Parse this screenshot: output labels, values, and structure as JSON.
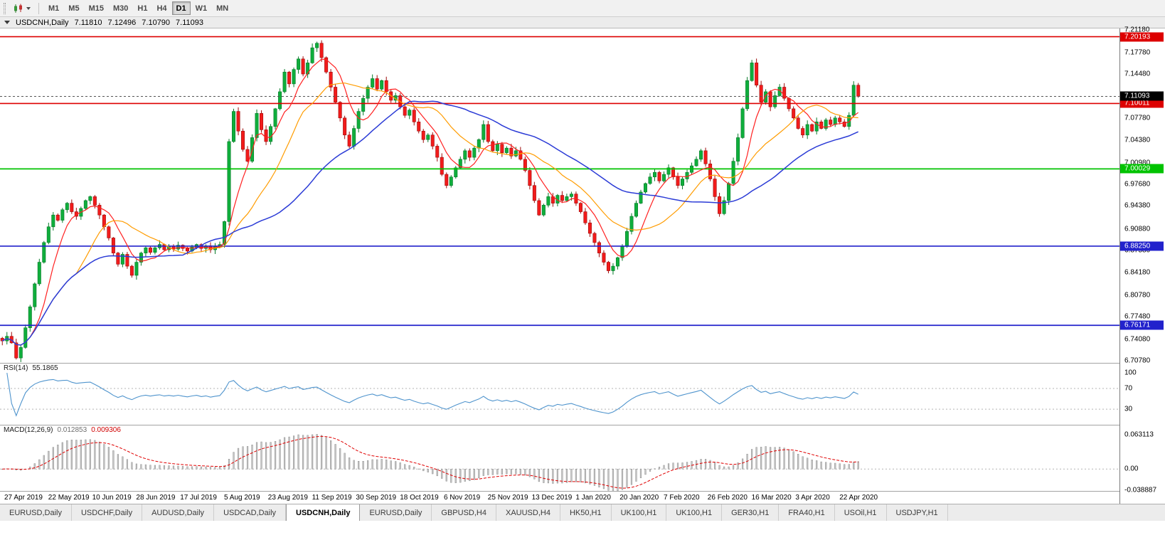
{
  "toolbar": {
    "timeframes": [
      "M1",
      "M5",
      "M15",
      "M30",
      "H1",
      "H4",
      "D1",
      "W1",
      "MN"
    ],
    "active_timeframe": "D1"
  },
  "window": {
    "symbol": "USDCNH,Daily",
    "open": "7.11810",
    "high": "7.12496",
    "low": "7.10790",
    "close": "7.11093"
  },
  "chart_data": {
    "type": "candlestick",
    "symbol": "USDCNH",
    "timeframe": "Daily",
    "grid": false,
    "last_quote": {
      "open": 7.1181,
      "high": 7.12496,
      "low": 7.1079,
      "close": 7.11093
    },
    "x_labels": [
      "27 Apr 2019",
      "22 May 2019",
      "10 Jun 2019",
      "28 Jun 2019",
      "17 Jul 2019",
      "5 Aug 2019",
      "23 Aug 2019",
      "11 Sep 2019",
      "30 Sep 2019",
      "18 Oct 2019",
      "6 Nov 2019",
      "25 Nov 2019",
      "13 Dec 2019",
      "1 Jan 2020",
      "20 Jan 2020",
      "7 Feb 2020",
      "26 Feb 2020",
      "16 Mar 2020",
      "3 Apr 2020",
      "22 Apr 2020"
    ],
    "price_axis": {
      "min": 6.7045,
      "max": 7.2145,
      "labels": [
        "7.21180",
        "7.17780",
        "7.14480",
        "7.07780",
        "7.04380",
        "7.00980",
        "6.97680",
        "6.94380",
        "6.90880",
        "6.87580",
        "6.84180",
        "6.80780",
        "6.77480",
        "6.74080",
        "6.70780"
      ]
    },
    "levels": [
      {
        "label": "7.20193",
        "value": 7.20193,
        "color": "#dd0000"
      },
      {
        "label": "7.10011",
        "value": 7.10011,
        "color": "#dd0000"
      },
      {
        "label": "7.00029",
        "value": 7.00029,
        "color": "#00c300"
      },
      {
        "label": "6.88250",
        "value": 6.8825,
        "color": "#2222cc"
      },
      {
        "label": "6.76171",
        "value": 6.76171,
        "color": "#2222cc"
      }
    ],
    "current_price": {
      "label": "7.11093",
      "value": 7.11093,
      "color": "#000000"
    },
    "colors": {
      "up": "#0fae3c",
      "up_border": "#067a28",
      "down": "#f21b1b",
      "down_border": "#9e0b0b",
      "rsi_line": "#4f94cd",
      "macd_hist_fill": "#c6c6c6",
      "macd_hist_stroke": "#7f7f7f",
      "macd_signal": "#e00000",
      "level_guide": "#b4b4b4"
    },
    "moving_averages": [
      {
        "name": "ma-fast",
        "period": 7,
        "color": "#ff2020"
      },
      {
        "name": "ma-medium",
        "period": 17,
        "color": "#ff9c00"
      },
      {
        "name": "ma-slow",
        "period": 40,
        "color": "#2b3bd6"
      }
    ],
    "closes": [
      6.738,
      6.745,
      6.735,
      6.712,
      6.728,
      6.758,
      6.79,
      6.825,
      6.858,
      6.888,
      6.912,
      6.93,
      6.922,
      6.938,
      6.948,
      6.935,
      6.928,
      6.94,
      6.952,
      6.958,
      6.945,
      6.93,
      6.912,
      6.895,
      6.872,
      6.855,
      6.87,
      6.852,
      6.838,
      6.858,
      6.872,
      6.88,
      6.873,
      6.88,
      6.885,
      6.877,
      6.882,
      6.878,
      6.884,
      6.879,
      6.875,
      6.881,
      6.885,
      6.879,
      6.883,
      6.877,
      6.882,
      6.885,
      6.92,
      7.042,
      7.088,
      7.058,
      7.03,
      7.012,
      7.048,
      7.085,
      7.06,
      7.042,
      7.065,
      7.092,
      7.118,
      7.148,
      7.13,
      7.152,
      7.168,
      7.145,
      7.162,
      7.185,
      7.192,
      7.17,
      7.148,
      7.125,
      7.102,
      7.078,
      7.052,
      7.035,
      7.062,
      7.088,
      7.108,
      7.125,
      7.138,
      7.122,
      7.135,
      7.118,
      7.105,
      7.112,
      7.095,
      7.082,
      7.09,
      7.072,
      7.058,
      7.045,
      7.052,
      7.035,
      7.018,
      6.992,
      6.975,
      6.988,
      7.002,
      7.015,
      7.028,
      7.018,
      7.032,
      7.045,
      7.068,
      7.042,
      7.028,
      7.038,
      7.025,
      7.032,
      7.02,
      7.028,
      7.015,
      6.998,
      6.975,
      6.952,
      6.93,
      6.945,
      6.958,
      6.948,
      6.96,
      6.952,
      6.958,
      6.962,
      6.948,
      6.935,
      6.918,
      6.902,
      6.888,
      6.872,
      6.858,
      6.845,
      6.852,
      6.865,
      6.882,
      6.905,
      6.928,
      6.948,
      6.965,
      6.978,
      6.988,
      6.995,
      6.982,
      6.992,
      7.002,
      6.988,
      6.975,
      6.985,
      6.995,
      7.005,
      7.015,
      7.028,
      7.008,
      6.985,
      6.958,
      6.932,
      6.952,
      6.978,
      7.012,
      7.048,
      7.092,
      7.135,
      7.162,
      7.128,
      7.102,
      7.118,
      7.095,
      7.112,
      7.125,
      7.108,
      7.092,
      7.078,
      7.062,
      7.052,
      7.068,
      7.058,
      7.072,
      7.062,
      7.075,
      7.068,
      7.078,
      7.072,
      7.065,
      7.082,
      7.128,
      7.11093
    ],
    "rsi": {
      "name": "RSI(14)",
      "value": "55.1865",
      "period": 14,
      "levels": [
        "100",
        "70",
        "30"
      ],
      "level_values": [
        100,
        70,
        30
      ],
      "guide_values": [
        70,
        30
      ],
      "range": [
        118,
        0
      ]
    },
    "macd": {
      "name": "MACD(12,26,9)",
      "values": [
        "0.012853",
        "0.009306"
      ],
      "fast": 12,
      "slow": 26,
      "signal": 9,
      "axis_labels": [
        "0.063113",
        "0.00",
        "-0.038887"
      ],
      "axis_values": [
        0.063113,
        0,
        -0.038887
      ],
      "range": [
        0.0805,
        -0.0405
      ]
    }
  },
  "tabs": {
    "active_index": 4,
    "items": [
      "EURUSD,Daily",
      "USDCHF,Daily",
      "AUDUSD,Daily",
      "USDCAD,Daily",
      "USDCNH,Daily",
      "EURUSD,Daily",
      "GBPUSD,H4",
      "XAUUSD,H4",
      "HK50,H1",
      "UK100,H1",
      "UK100,H1",
      "GER30,H1",
      "FRA40,H1",
      "USOil,H1",
      "USDJPY,H1"
    ]
  }
}
